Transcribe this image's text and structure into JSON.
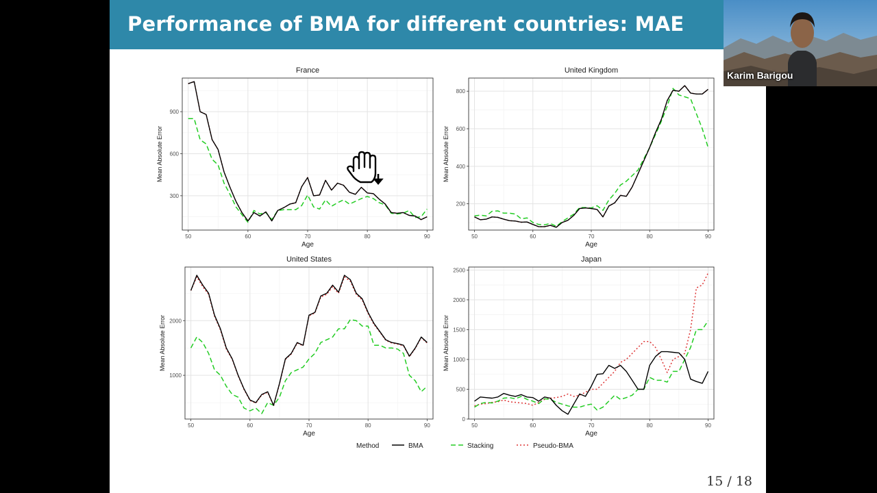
{
  "slide": {
    "title": "Performance of BMA for different countries: MAE",
    "page_number": "15 / 18"
  },
  "video": {
    "participant_name": "Karim Barigou"
  },
  "legend": {
    "title": "Method",
    "entries": [
      {
        "name": "BMA",
        "color": "#000000",
        "dash": "solid"
      },
      {
        "name": "Stacking",
        "color": "#22cc22",
        "dash": "dashed"
      },
      {
        "name": "Pseudo-BMA",
        "color": "#dd3333",
        "dash": "dotted"
      }
    ]
  },
  "chart_data": [
    {
      "type": "line",
      "title": "France",
      "xlabel": "Age",
      "ylabel": "Mean Absolute Error",
      "xlim": [
        49,
        91
      ],
      "ylim": [
        55,
        1140
      ],
      "xticks": [
        50,
        60,
        70,
        80,
        90
      ],
      "yticks": [
        300,
        600,
        900
      ],
      "grid": true,
      "x": [
        50,
        51,
        52,
        53,
        54,
        55,
        56,
        57,
        58,
        59,
        60,
        61,
        62,
        63,
        64,
        65,
        66,
        67,
        68,
        69,
        70,
        71,
        72,
        73,
        74,
        75,
        76,
        77,
        78,
        79,
        80,
        81,
        82,
        83,
        84,
        85,
        86,
        87,
        88,
        89,
        90
      ],
      "series": [
        {
          "name": "BMA",
          "values": [
            1100,
            1115,
            900,
            880,
            700,
            630,
            470,
            360,
            260,
            180,
            120,
            180,
            155,
            185,
            120,
            195,
            215,
            240,
            250,
            365,
            430,
            300,
            305,
            410,
            340,
            390,
            375,
            325,
            310,
            360,
            320,
            315,
            275,
            240,
            180,
            175,
            180,
            160,
            155,
            130,
            150
          ]
        },
        {
          "name": "Stacking",
          "values": [
            850,
            850,
            700,
            670,
            560,
            520,
            390,
            310,
            220,
            165,
            110,
            195,
            170,
            180,
            130,
            195,
            200,
            200,
            200,
            230,
            305,
            220,
            205,
            270,
            225,
            250,
            270,
            240,
            260,
            280,
            295,
            280,
            250,
            235,
            175,
            170,
            175,
            195,
            145,
            150,
            205
          ]
        },
        {
          "name": "Pseudo-BMA",
          "values": [
            1100,
            1115,
            900,
            880,
            700,
            630,
            470,
            360,
            260,
            180,
            120,
            180,
            155,
            185,
            120,
            195,
            215,
            240,
            250,
            365,
            430,
            300,
            305,
            410,
            340,
            390,
            375,
            325,
            310,
            360,
            320,
            315,
            275,
            240,
            180,
            175,
            180,
            160,
            155,
            130,
            150
          ]
        }
      ]
    },
    {
      "type": "line",
      "title": "United Kingdom",
      "xlabel": "Age",
      "ylabel": "Mean Absolute Error",
      "xlim": [
        49,
        91
      ],
      "ylim": [
        60,
        870
      ],
      "xticks": [
        50,
        60,
        70,
        80,
        90
      ],
      "yticks": [
        200,
        400,
        600,
        800
      ],
      "grid": true,
      "x": [
        50,
        51,
        52,
        53,
        54,
        55,
        56,
        57,
        58,
        59,
        60,
        61,
        62,
        63,
        64,
        65,
        66,
        67,
        68,
        69,
        70,
        71,
        72,
        73,
        74,
        75,
        76,
        77,
        78,
        79,
        80,
        81,
        82,
        83,
        84,
        85,
        86,
        87,
        88,
        89,
        90
      ],
      "series": [
        {
          "name": "BMA",
          "values": [
            130,
            115,
            118,
            130,
            128,
            118,
            110,
            108,
            102,
            103,
            90,
            78,
            78,
            85,
            75,
            100,
            112,
            138,
            175,
            178,
            175,
            170,
            130,
            188,
            205,
            245,
            240,
            290,
            360,
            430,
            500,
            580,
            650,
            750,
            805,
            800,
            830,
            790,
            785,
            785,
            810
          ]
        },
        {
          "name": "Stacking",
          "values": [
            135,
            140,
            135,
            160,
            162,
            150,
            150,
            145,
            120,
            125,
            100,
            90,
            88,
            95,
            80,
            105,
            125,
            145,
            180,
            180,
            178,
            190,
            165,
            220,
            255,
            300,
            320,
            350,
            380,
            440,
            500,
            570,
            640,
            720,
            815,
            780,
            770,
            760,
            680,
            600,
            500
          ]
        },
        {
          "name": "Pseudo-BMA",
          "values": [
            130,
            115,
            118,
            130,
            128,
            118,
            110,
            108,
            102,
            103,
            90,
            78,
            78,
            85,
            75,
            100,
            112,
            138,
            175,
            178,
            175,
            170,
            130,
            188,
            205,
            245,
            240,
            290,
            360,
            430,
            500,
            580,
            650,
            750,
            805,
            800,
            830,
            790,
            785,
            785,
            810
          ]
        }
      ]
    },
    {
      "type": "line",
      "title": "United States",
      "xlabel": "Age",
      "ylabel": "Mean Absolute Error",
      "xlim": [
        49,
        91
      ],
      "ylim": [
        200,
        2980
      ],
      "xticks": [
        50,
        60,
        70,
        80,
        90
      ],
      "yticks": [
        1000,
        2000
      ],
      "grid": true,
      "x": [
        50,
        51,
        52,
        53,
        54,
        55,
        56,
        57,
        58,
        59,
        60,
        61,
        62,
        63,
        64,
        65,
        66,
        67,
        68,
        69,
        70,
        71,
        72,
        73,
        74,
        75,
        76,
        77,
        78,
        79,
        80,
        81,
        82,
        83,
        84,
        85,
        86,
        87,
        88,
        89,
        90
      ],
      "series": [
        {
          "name": "BMA",
          "values": [
            2550,
            2830,
            2650,
            2500,
            2100,
            1850,
            1500,
            1300,
            1000,
            750,
            550,
            500,
            650,
            700,
            450,
            850,
            1300,
            1400,
            1600,
            1550,
            2100,
            2150,
            2450,
            2500,
            2650,
            2520,
            2830,
            2750,
            2500,
            2400,
            2150,
            1950,
            1800,
            1650,
            1600,
            1580,
            1550,
            1350,
            1500,
            1700,
            1600
          ]
        },
        {
          "name": "Stacking",
          "values": [
            1500,
            1700,
            1600,
            1400,
            1100,
            1000,
            800,
            650,
            600,
            400,
            350,
            400,
            300,
            500,
            450,
            600,
            900,
            1050,
            1100,
            1150,
            1300,
            1400,
            1600,
            1650,
            1700,
            1850,
            1850,
            2020,
            2000,
            1900,
            1900,
            1550,
            1550,
            1500,
            1500,
            1480,
            1400,
            1000,
            900,
            700,
            800
          ]
        },
        {
          "name": "Pseudo-BMA",
          "values": [
            2550,
            2800,
            2620,
            2480,
            2080,
            1830,
            1480,
            1290,
            990,
            740,
            540,
            490,
            640,
            690,
            440,
            840,
            1290,
            1390,
            1590,
            1540,
            2090,
            2140,
            2430,
            2480,
            2620,
            2500,
            2800,
            2720,
            2480,
            2380,
            2130,
            1930,
            1790,
            1640,
            1590,
            1570,
            1540,
            1340,
            1490,
            1690,
            1590
          ]
        }
      ]
    },
    {
      "type": "line",
      "title": "Japan",
      "xlabel": "Age",
      "ylabel": "Mean Absolute Error",
      "xlim": [
        49,
        91
      ],
      "ylim": [
        0,
        2550
      ],
      "xticks": [
        50,
        60,
        70,
        80,
        90
      ],
      "yticks": [
        0,
        500,
        1000,
        1500,
        2000,
        2500
      ],
      "grid": true,
      "x": [
        50,
        51,
        52,
        53,
        54,
        55,
        56,
        57,
        58,
        59,
        60,
        61,
        62,
        63,
        64,
        65,
        66,
        67,
        68,
        69,
        70,
        71,
        72,
        73,
        74,
        75,
        76,
        77,
        78,
        79,
        80,
        81,
        82,
        83,
        84,
        85,
        86,
        87,
        88,
        89,
        90
      ],
      "series": [
        {
          "name": "BMA",
          "values": [
            300,
            370,
            360,
            350,
            370,
            430,
            400,
            380,
            410,
            370,
            360,
            300,
            370,
            350,
            230,
            140,
            80,
            250,
            420,
            380,
            550,
            750,
            760,
            900,
            850,
            900,
            800,
            650,
            500,
            500,
            900,
            1050,
            1130,
            1130,
            1120,
            1110,
            1000,
            670,
            630,
            600,
            800
          ]
        },
        {
          "name": "Stacking",
          "values": [
            200,
            260,
            280,
            270,
            300,
            350,
            360,
            340,
            380,
            330,
            300,
            260,
            340,
            330,
            280,
            250,
            220,
            200,
            200,
            230,
            250,
            150,
            200,
            300,
            400,
            330,
            360,
            400,
            500,
            500,
            700,
            650,
            650,
            620,
            800,
            800,
            1000,
            1200,
            1500,
            1500,
            1650
          ]
        },
        {
          "name": "Pseudo-BMA",
          "values": [
            220,
            250,
            260,
            280,
            290,
            320,
            290,
            280,
            270,
            260,
            230,
            280,
            330,
            350,
            360,
            380,
            420,
            380,
            400,
            450,
            500,
            500,
            600,
            700,
            800,
            950,
            1000,
            1100,
            1200,
            1300,
            1300,
            1200,
            1000,
            780,
            1000,
            1050,
            1100,
            1500,
            2200,
            2250,
            2450
          ]
        }
      ]
    }
  ]
}
